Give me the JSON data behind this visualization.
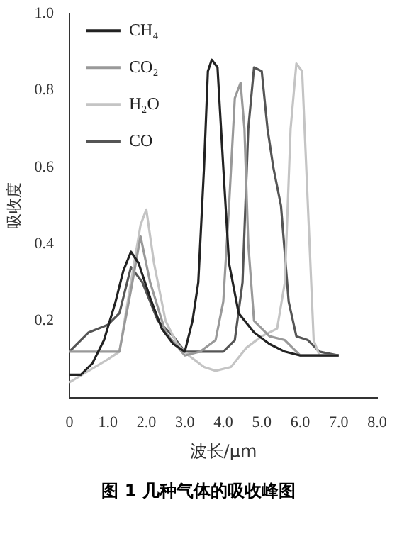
{
  "chart_data": {
    "type": "line",
    "xlabel": "波长/μm",
    "ylabel": "吸收度",
    "annotations": [
      "图 1  几种气体的吸收峰图"
    ],
    "xlim": [
      0,
      8
    ],
    "ylim": [
      0,
      1
    ],
    "xticks": [
      0,
      {
        "value": 1,
        "label": "1.0"
      },
      {
        "value": 2,
        "label": "2.0"
      },
      {
        "value": 3,
        "label": "3.0"
      },
      {
        "value": 4,
        "label": "4.0"
      },
      {
        "value": 5,
        "label": "5.0"
      },
      {
        "value": 6,
        "label": "6.0"
      },
      {
        "value": 7,
        "label": "7.0"
      },
      {
        "value": 8,
        "label": "8.0"
      }
    ],
    "yticks": [
      0.2,
      0.4,
      0.6,
      0.8,
      {
        "value": 1,
        "label": "1.0"
      }
    ],
    "grid": false,
    "legend": "top left",
    "marker": "none",
    "line_style": "solid",
    "series": [
      {
        "name": "CH₄",
        "color": "#222222",
        "x": [
          0,
          0.3,
          0.6,
          0.9,
          1.2,
          1.4,
          1.6,
          1.8,
          2.1,
          2.4,
          2.7,
          3.0,
          3.2,
          3.35,
          3.5,
          3.6,
          3.7,
          3.85,
          4.0,
          4.15,
          4.4,
          4.8,
          5.2,
          5.6,
          6.0,
          7.0
        ],
        "values": [
          0.06,
          0.06,
          0.09,
          0.15,
          0.25,
          0.33,
          0.38,
          0.35,
          0.26,
          0.18,
          0.14,
          0.12,
          0.2,
          0.3,
          0.6,
          0.85,
          0.88,
          0.86,
          0.6,
          0.35,
          0.22,
          0.17,
          0.14,
          0.12,
          0.11,
          0.11
        ]
      },
      {
        "name": "CO₂",
        "color": "#999999",
        "x": [
          0,
          0.5,
          1.0,
          1.3,
          1.6,
          1.85,
          2.1,
          2.5,
          3.0,
          3.4,
          3.8,
          4.0,
          4.15,
          4.3,
          4.45,
          4.55,
          4.65,
          4.8,
          5.2,
          5.6,
          5.8,
          6.0,
          7.0
        ],
        "values": [
          0.12,
          0.12,
          0.12,
          0.12,
          0.28,
          0.42,
          0.3,
          0.17,
          0.11,
          0.12,
          0.15,
          0.25,
          0.5,
          0.78,
          0.82,
          0.7,
          0.4,
          0.2,
          0.16,
          0.15,
          0.13,
          0.11,
          0.11
        ]
      },
      {
        "name": "H₂O",
        "color": "#c4c4c4",
        "x": [
          0,
          0.5,
          1.0,
          1.3,
          1.6,
          1.85,
          2.0,
          2.2,
          2.5,
          2.8,
          3.1,
          3.5,
          3.8,
          4.2,
          4.6,
          5.0,
          5.4,
          5.6,
          5.75,
          5.9,
          6.05,
          6.2,
          6.35,
          6.5,
          7.0
        ],
        "values": [
          0.04,
          0.07,
          0.1,
          0.12,
          0.3,
          0.45,
          0.49,
          0.35,
          0.2,
          0.14,
          0.11,
          0.08,
          0.07,
          0.08,
          0.13,
          0.16,
          0.18,
          0.3,
          0.7,
          0.87,
          0.85,
          0.5,
          0.15,
          0.11,
          0.11
        ]
      },
      {
        "name": "CO",
        "color": "#555555",
        "x": [
          0,
          0.5,
          1.0,
          1.3,
          1.6,
          1.9,
          2.3,
          2.7,
          3.0,
          3.5,
          4.0,
          4.3,
          4.5,
          4.65,
          4.8,
          5.0,
          5.15,
          5.3,
          5.5,
          5.7,
          5.9,
          6.2,
          6.5,
          7.0
        ],
        "values": [
          0.12,
          0.17,
          0.19,
          0.22,
          0.34,
          0.3,
          0.2,
          0.16,
          0.12,
          0.12,
          0.12,
          0.15,
          0.3,
          0.7,
          0.86,
          0.85,
          0.7,
          0.6,
          0.5,
          0.25,
          0.16,
          0.15,
          0.12,
          0.11
        ]
      }
    ]
  }
}
